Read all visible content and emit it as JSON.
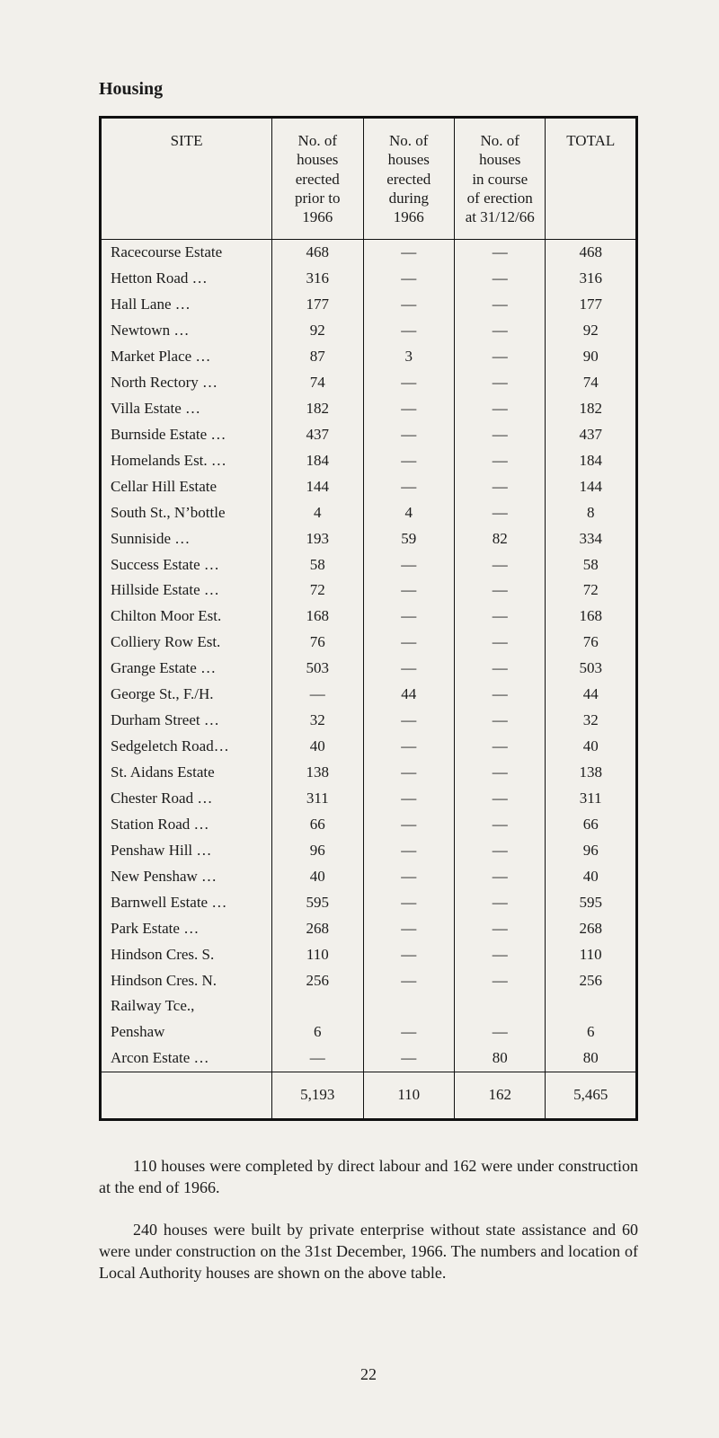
{
  "heading": "Housing",
  "columns": {
    "site": "SITE",
    "prior": "No. of\nhouses\nerected\nprior to\n1966",
    "during": "No. of\nhouses\nerected\nduring\n1966",
    "course": "No. of\nhouses\nin course\nof erection\nat 31/12/66",
    "total": "TOTAL"
  },
  "rows": [
    {
      "site": "Racecourse Estate",
      "prior": "468",
      "during": "—",
      "course": "—",
      "total": "468"
    },
    {
      "site": "Hetton Road   …",
      "prior": "316",
      "during": "—",
      "course": "—",
      "total": "316"
    },
    {
      "site": "Hall Lane        …",
      "prior": "177",
      "during": "—",
      "course": "—",
      "total": "177"
    },
    {
      "site": "Newtown          …",
      "prior": "92",
      "during": "—",
      "course": "—",
      "total": "92"
    },
    {
      "site": "Market Place   …",
      "prior": "87",
      "during": "3",
      "course": "—",
      "total": "90"
    },
    {
      "site": "North Rectory …",
      "prior": "74",
      "during": "—",
      "course": "—",
      "total": "74"
    },
    {
      "site": "Villa Estate      …",
      "prior": "182",
      "during": "—",
      "course": "—",
      "total": "182"
    },
    {
      "site": "Burnside Estate …",
      "prior": "437",
      "during": "—",
      "course": "—",
      "total": "437"
    },
    {
      "site": "Homelands Est. …",
      "prior": "184",
      "during": "—",
      "course": "—",
      "total": "184"
    },
    {
      "site": "Cellar Hill Estate",
      "prior": "144",
      "during": "—",
      "course": "—",
      "total": "144"
    },
    {
      "site": "South St., N’bottle",
      "prior": "4",
      "during": "4",
      "course": "—",
      "total": "8"
    },
    {
      "site": "Sunniside          …",
      "prior": "193",
      "during": "59",
      "course": "82",
      "total": "334"
    },
    {
      "site": "Success Estate  …",
      "prior": "58",
      "during": "—",
      "course": "—",
      "total": "58"
    },
    {
      "site": "Hillside Estate  …",
      "prior": "72",
      "during": "—",
      "course": "—",
      "total": "72"
    },
    {
      "site": "Chilton Moor Est.",
      "prior": "168",
      "during": "—",
      "course": "—",
      "total": "168"
    },
    {
      "site": "Colliery Row Est.",
      "prior": "76",
      "during": "—",
      "course": "—",
      "total": "76"
    },
    {
      "site": "Grange Estate  …",
      "prior": "503",
      "during": "—",
      "course": "—",
      "total": "503"
    },
    {
      "site": "George St., F./H.",
      "prior": "—",
      "during": "44",
      "course": "—",
      "total": "44"
    },
    {
      "site": "Durham Street …",
      "prior": "32",
      "during": "—",
      "course": "—",
      "total": "32"
    },
    {
      "site": "Sedgeletch Road…",
      "prior": "40",
      "during": "—",
      "course": "—",
      "total": "40"
    },
    {
      "site": "St. Aidans Estate",
      "prior": "138",
      "during": "—",
      "course": "—",
      "total": "138"
    },
    {
      "site": "Chester Road   …",
      "prior": "311",
      "during": "—",
      "course": "—",
      "total": "311"
    },
    {
      "site": "Station Road    …",
      "prior": "66",
      "during": "—",
      "course": "—",
      "total": "66"
    },
    {
      "site": "Penshaw Hill    …",
      "prior": "96",
      "during": "—",
      "course": "—",
      "total": "96"
    },
    {
      "site": "New Penshaw   …",
      "prior": "40",
      "during": "—",
      "course": "—",
      "total": "40"
    },
    {
      "site": "Barnwell Estate …",
      "prior": "595",
      "during": "—",
      "course": "—",
      "total": "595"
    },
    {
      "site": "Park Estate       …",
      "prior": "268",
      "during": "—",
      "course": "—",
      "total": "268"
    },
    {
      "site": "Hindson Cres. S.",
      "prior": "110",
      "during": "—",
      "course": "—",
      "total": "110"
    },
    {
      "site": "Hindson Cres. N.",
      "prior": "256",
      "during": "—",
      "course": "—",
      "total": "256"
    },
    {
      "site": "Railway Tce.,",
      "prior": "",
      "during": "",
      "course": "",
      "total": ""
    },
    {
      "site": "            Penshaw",
      "prior": "6",
      "during": "—",
      "course": "—",
      "total": "6"
    },
    {
      "site": "Arcon Estate    …",
      "prior": "—",
      "during": "—",
      "course": "80",
      "total": "80"
    }
  ],
  "totals": {
    "site": "",
    "prior": "5,193",
    "during": "110",
    "course": "162",
    "total": "5,465"
  },
  "para1": "110 houses were completed by direct labour and 162 were under construction at the end of 1966.",
  "para2": "240 houses were built by private enterprise without state assistance and 60 were under construction on the 31st December, 1966. The numbers and location of Local Authority houses are shown on the above table.",
  "pageNumber": "22"
}
